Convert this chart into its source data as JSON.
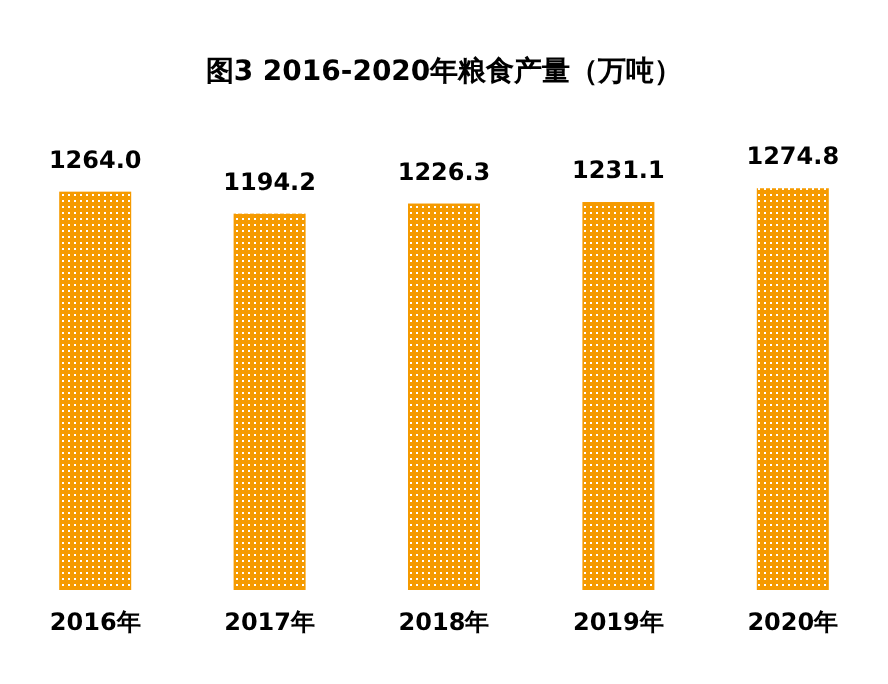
{
  "chart_data": {
    "type": "bar",
    "title": "图3 2016-2020年粮食产量（万吨）",
    "categories": [
      "2016年",
      "2017年",
      "2018年",
      "2019年",
      "2020年"
    ],
    "values": [
      1264.0,
      1194.2,
      1226.3,
      1231.1,
      1274.8
    ],
    "value_labels": [
      "1264.0",
      "1194.2",
      "1226.3",
      "1231.1",
      "1274.8"
    ],
    "color": "#f59a00"
  }
}
